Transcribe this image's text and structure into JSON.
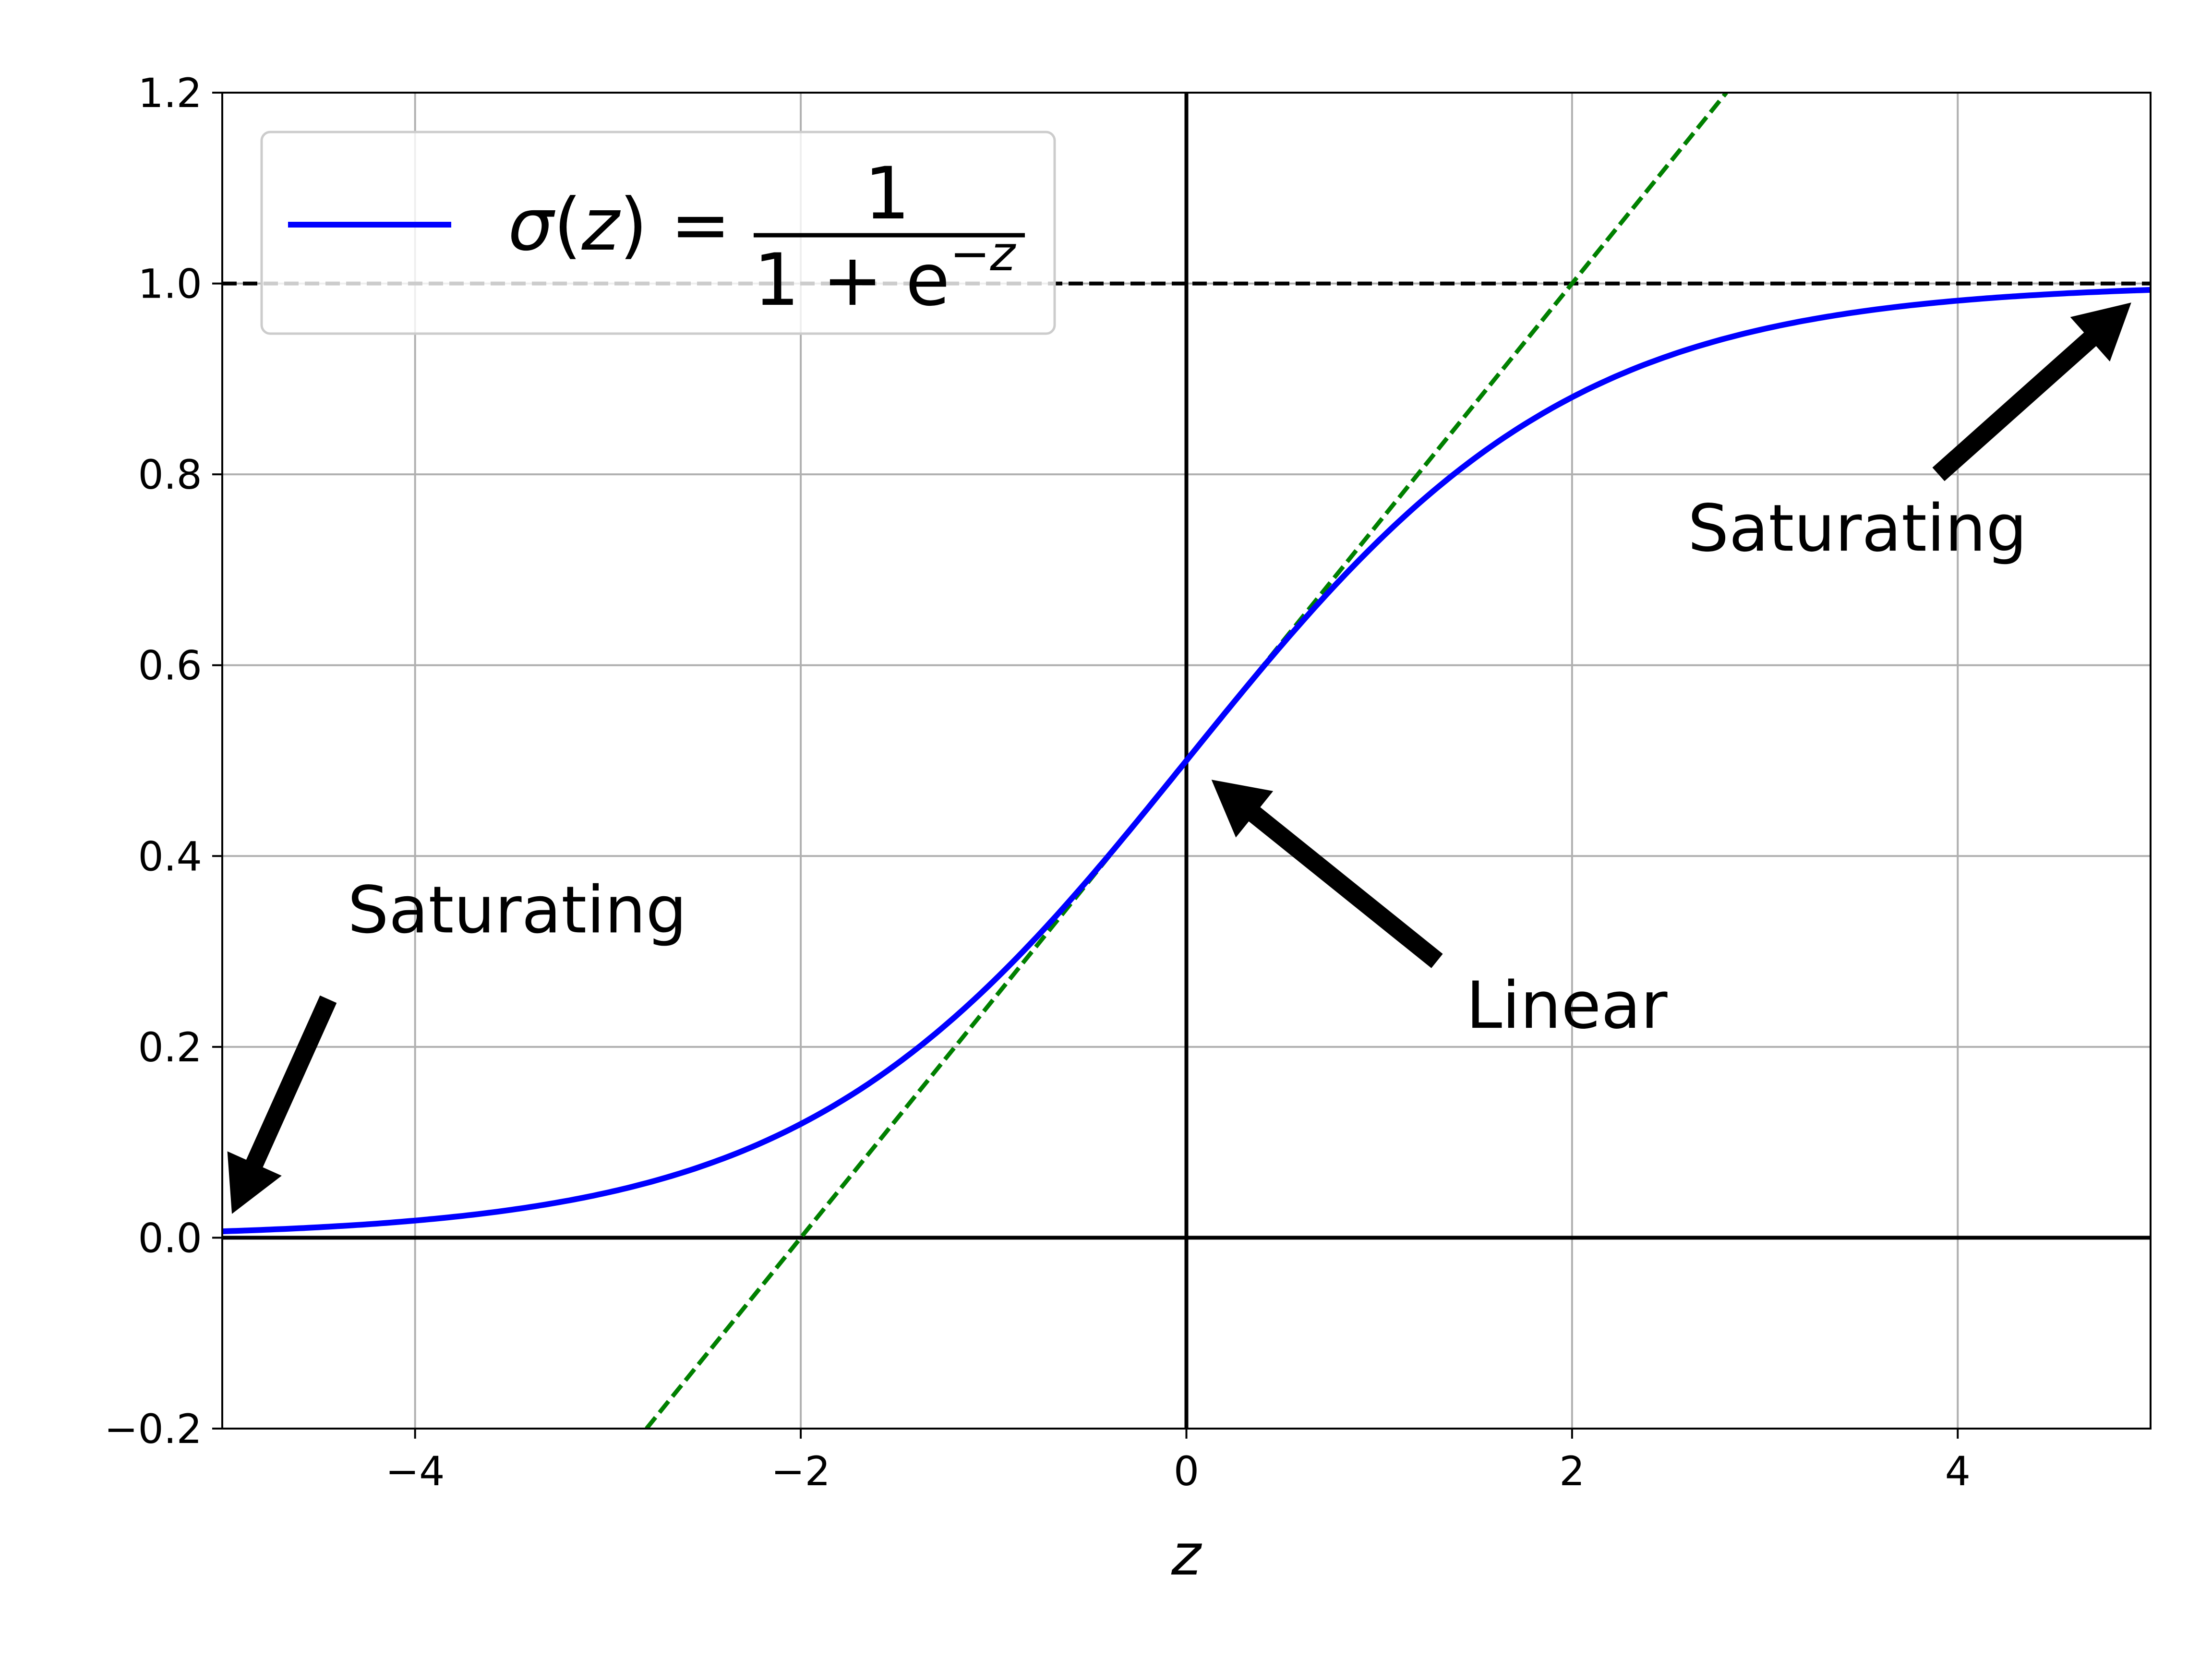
{
  "chart_data": {
    "type": "line",
    "xlabel": "z",
    "ylabel": "",
    "xlim": [
      -5,
      5
    ],
    "ylim": [
      -0.2,
      1.2
    ],
    "xticks": [
      -4,
      -2,
      0,
      2,
      4
    ],
    "xtick_labels": [
      "−4",
      "−2",
      "0",
      "2",
      "4"
    ],
    "yticks": [
      -0.2,
      0.0,
      0.2,
      0.4,
      0.6,
      0.8,
      1.0,
      1.2
    ],
    "ytick_labels": [
      "−0.2",
      "0.0",
      "0.2",
      "0.4",
      "0.6",
      "0.8",
      "1.0",
      "1.2"
    ],
    "grid": true,
    "legend_position": "top-left",
    "legend": {
      "sigma": "σ",
      "open_paren": "(",
      "z": "z",
      "close_paren": ") =",
      "numerator": "1",
      "denominator": "1 + e",
      "exponent": "−z"
    },
    "series": [
      {
        "name": "σ(z) = 1/(1 + e⁻ᶻ)",
        "color": "#0000ff",
        "style": "solid",
        "function": "sigmoid",
        "x": [
          -5,
          -4,
          -3,
          -2,
          -1,
          0,
          1,
          2,
          3,
          4,
          5
        ],
        "y": [
          0.0067,
          0.018,
          0.047,
          0.119,
          0.269,
          0.5,
          0.731,
          0.881,
          0.953,
          0.982,
          0.9933
        ]
      },
      {
        "color": "#008000",
        "style": "dashed",
        "function": "tangent at z = 0",
        "x": [
          -2.8,
          2.8
        ],
        "y": [
          -0.2,
          1.2
        ]
      }
    ],
    "reference_lines": [
      {
        "orientation": "horizontal",
        "y": 1.0,
        "color": "#000000",
        "style": "dashed"
      },
      {
        "orientation": "horizontal",
        "y": 0.0,
        "color": "#000000",
        "style": "solid"
      },
      {
        "orientation": "vertical",
        "x": 0.0,
        "color": "#000000",
        "style": "solid"
      }
    ],
    "annotations": [
      {
        "text": "Saturating",
        "x": 2.6,
        "y": 0.72,
        "arrow_from": [
          3.9,
          0.8
        ],
        "arrow_to": [
          4.9,
          0.98
        ]
      },
      {
        "text": "Saturating",
        "x": -4.35,
        "y": 0.32,
        "arrow_from": [
          -4.45,
          0.25
        ],
        "arrow_to": [
          -4.95,
          0.025
        ]
      },
      {
        "text": "Linear",
        "x": 1.45,
        "y": 0.22,
        "arrow_from": [
          1.3,
          0.29
        ],
        "arrow_to": [
          0.13,
          0.48
        ]
      }
    ]
  }
}
